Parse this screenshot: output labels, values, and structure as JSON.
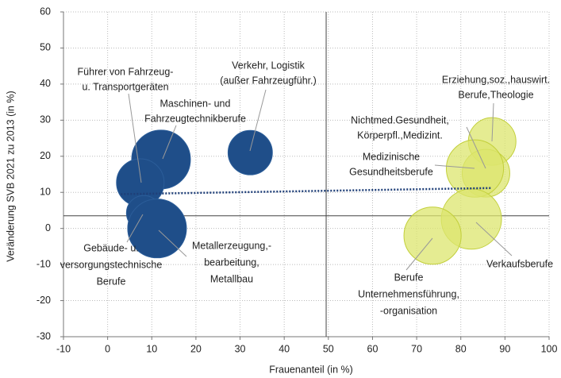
{
  "chart_data": {
    "type": "bubble",
    "x_label": "Frauenanteil (in %)",
    "y_label": "Veränderung SVB 2021 zu 2013 (in %)",
    "xlim": [
      -10,
      100
    ],
    "xticks": [
      -10,
      0,
      10,
      20,
      30,
      40,
      50,
      60,
      70,
      80,
      90,
      100
    ],
    "ylim": [
      -30,
      60
    ],
    "yticks": [
      -30,
      -20,
      -10,
      0,
      10,
      20,
      30,
      40,
      50,
      60
    ],
    "grid": true,
    "reference_lines": {
      "x": 49.5,
      "y": 3.5
    },
    "trendline": {
      "x": [
        3,
        87
      ],
      "y": [
        9.5,
        11.2
      ],
      "color": "#1f3f78"
    },
    "series": [
      {
        "color": "#1f4e89",
        "x": [
          12.1,
          7.4,
          8.2,
          11.2,
          32.3
        ],
        "y": [
          19.1,
          12.7,
          4.3,
          0,
          21
        ],
        "size": [
          1370,
          900,
          480,
          1370,
          780
        ],
        "labels": [
          [
            "Maschinen- und",
            "Fahrzeugtechnikberufe"
          ],
          [
            "Führer von Fahrzeug-",
            "u. Transportgeräten"
          ],
          [
            "Gebäude- u.",
            "versorgungstechnische",
            "Berufe"
          ],
          [
            "Metallerzeugung,-",
            "bearbeitung,",
            "Metallbau"
          ],
          [
            "Verkehr, Logistik",
            "(außer Fahrzeugführ.)"
          ]
        ]
      },
      {
        "color": "#dce66e",
        "x": [
          87.1,
          85.7,
          83.2,
          82.4,
          73.6
        ],
        "y": [
          24.1,
          15.3,
          16.6,
          2.6,
          -2
        ],
        "size": [
          900,
          900,
          1300,
          1440,
          1300
        ],
        "labels": [
          [
            "Erziehung,soz.,hauswirt.",
            "Berufe,Theologie"
          ],
          [
            "Nichtmed.Gesundheit,",
            "Körperpfl.,Medizint."
          ],
          [
            "Medizinische",
            "Gesundheitsberufe"
          ],
          [
            "Verkaufsberufe"
          ],
          [
            "Berufe",
            "Unternehmensführung,",
            "-organisation"
          ]
        ]
      }
    ]
  }
}
